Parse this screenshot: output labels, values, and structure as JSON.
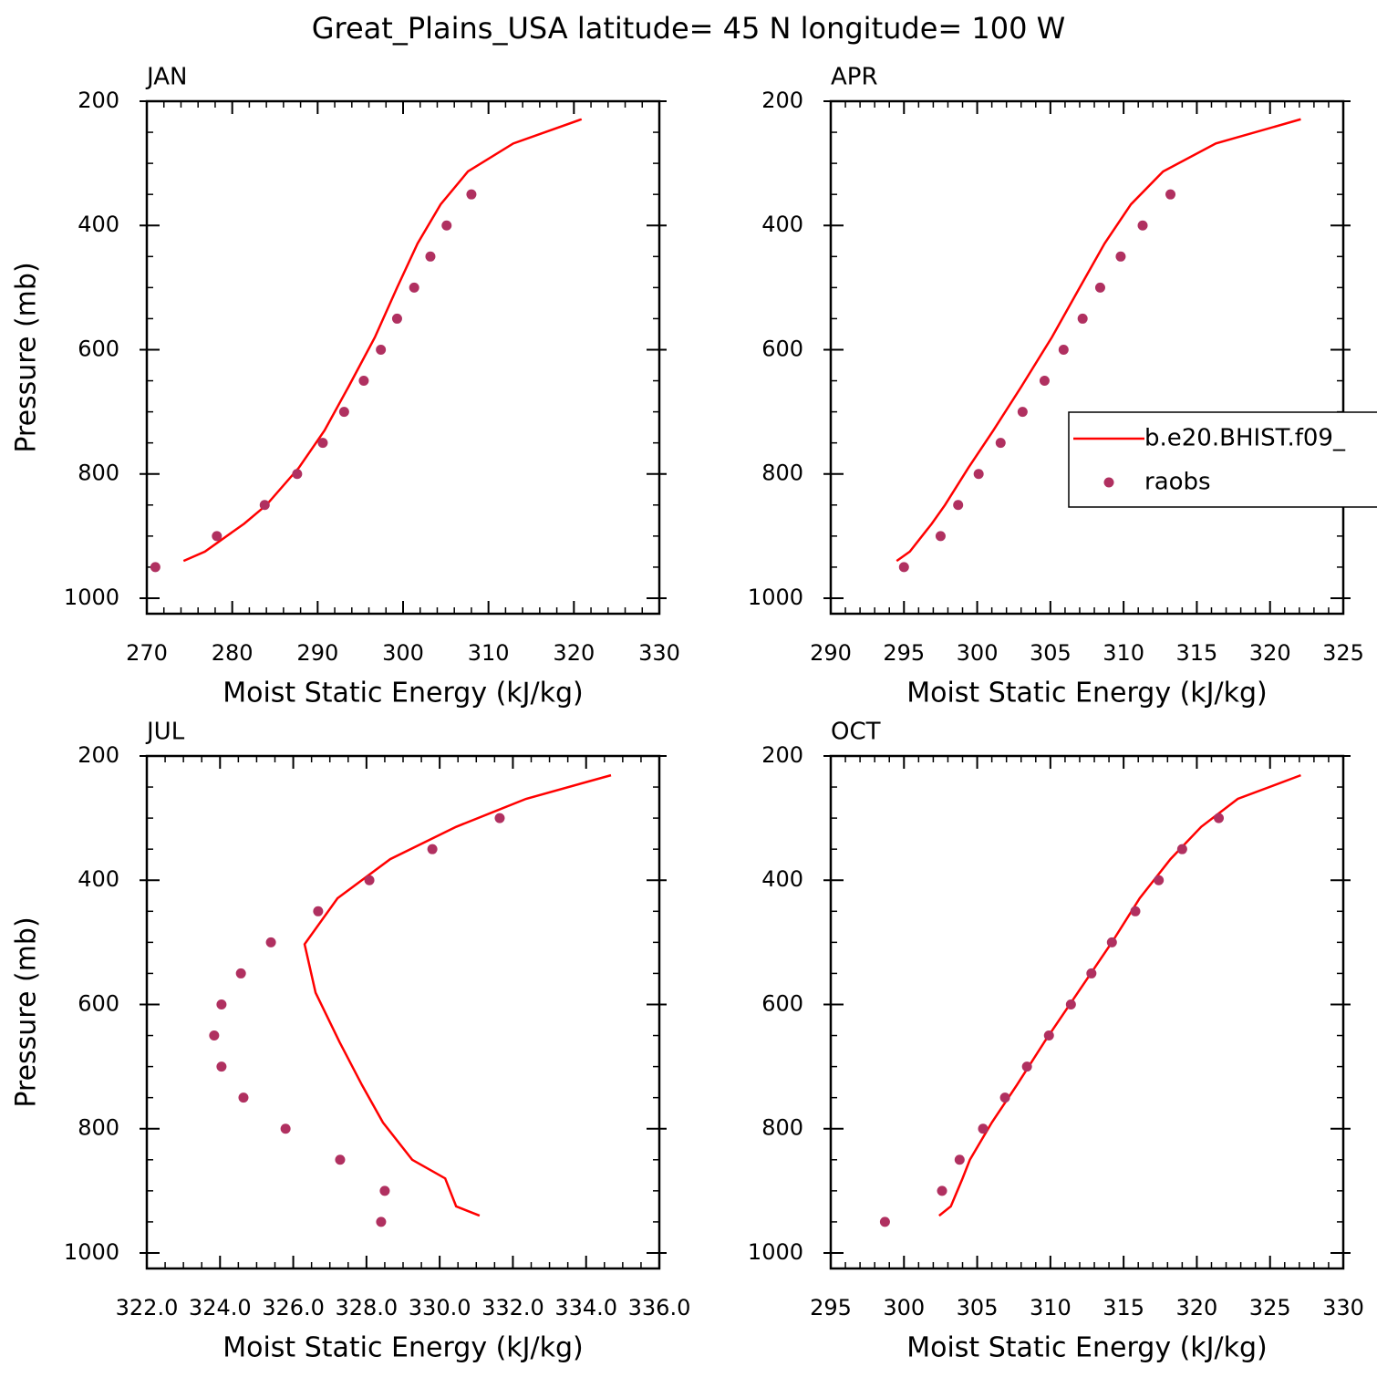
{
  "title": "Great_Plains_USA  latitude= 45 N longitude= 100 W",
  "chart_data": [
    {
      "type": "line",
      "title": "JAN",
      "xlabel": "Moist Static Energy (kJ/kg)",
      "ylabel": "Pressure (mb)",
      "xlim": [
        270,
        330
      ],
      "ylim": [
        1025,
        200
      ],
      "xticks": [
        270,
        280,
        290,
        300,
        310,
        320,
        330
      ],
      "yticks": [
        200,
        400,
        600,
        800,
        1000
      ],
      "xminorticks": [
        272,
        274,
        276,
        278,
        282,
        284,
        286,
        288,
        292,
        294,
        296,
        298,
        302,
        304,
        306,
        308,
        312,
        314,
        316,
        318,
        322,
        324,
        326,
        328
      ],
      "yminorticks": [
        250,
        300,
        350,
        450,
        500,
        550,
        650,
        700,
        750,
        850,
        900,
        950
      ],
      "series": [
        {
          "color": "#ff0000",
          "style": "line",
          "x": [
            320.9,
            312.9,
            307.6,
            304.4,
            301.7,
            299.3,
            296.7,
            293.6,
            290.8,
            287.8,
            284.0,
            281.4,
            276.8,
            274.3
          ],
          "y": [
            229,
            268,
            313,
            366,
            429,
            500,
            580,
            660,
            730,
            790,
            850,
            880,
            925,
            940
          ]
        },
        {
          "color": "#b03060",
          "style": "marker",
          "x": [
            308.0,
            305.1,
            303.2,
            301.3,
            299.3,
            297.4,
            295.4,
            293.1,
            290.6,
            287.6,
            283.8,
            278.2,
            271.0
          ],
          "y": [
            350,
            400,
            450,
            500,
            550,
            600,
            650,
            700,
            750,
            800,
            850,
            900,
            950
          ]
        }
      ]
    },
    {
      "type": "line",
      "title": "APR",
      "xlabel": "Moist Static Energy (kJ/kg)",
      "xlim": [
        290,
        325
      ],
      "ylim": [
        1025,
        200
      ],
      "xticks": [
        290,
        295,
        300,
        305,
        310,
        315,
        320,
        325
      ],
      "yticks": [
        200,
        400,
        600,
        800,
        1000
      ],
      "xminorticks": [
        291,
        292,
        293,
        294,
        296,
        297,
        298,
        299,
        301,
        302,
        303,
        304,
        306,
        307,
        308,
        309,
        311,
        312,
        313,
        314,
        316,
        317,
        318,
        319,
        321,
        322,
        323,
        324
      ],
      "yminorticks": [
        250,
        300,
        350,
        450,
        500,
        550,
        650,
        700,
        750,
        850,
        900,
        950
      ],
      "legend": "right",
      "series": [
        {
          "name": "b.e20.BHIST.f09_",
          "color": "#ff0000",
          "style": "line",
          "x": [
            322.1,
            316.3,
            312.7,
            310.5,
            308.7,
            307.0,
            305.1,
            303.0,
            301.1,
            299.4,
            297.8,
            296.9,
            295.4,
            294.5
          ],
          "y": [
            229,
            268,
            313,
            366,
            429,
            500,
            580,
            660,
            730,
            790,
            850,
            880,
            925,
            940
          ]
        },
        {
          "name": "raobs",
          "color": "#b03060",
          "style": "marker",
          "x": [
            313.2,
            311.3,
            309.8,
            308.4,
            307.2,
            305.9,
            304.6,
            303.1,
            301.6,
            300.1,
            298.7,
            297.5,
            295.0
          ],
          "y": [
            350,
            400,
            450,
            500,
            550,
            600,
            650,
            700,
            750,
            800,
            850,
            900,
            950
          ]
        }
      ]
    },
    {
      "type": "line",
      "title": "JUL",
      "xlabel": "Moist Static Energy (kJ/kg)",
      "ylabel": "Pressure (mb)",
      "xlim": [
        322,
        336
      ],
      "ylim": [
        1025,
        200
      ],
      "xticks": [
        {
          "value": 322,
          "label": "322.0"
        },
        {
          "value": 324,
          "label": "324.0"
        },
        {
          "value": 326,
          "label": "326.0"
        },
        {
          "value": 328,
          "label": "328.0"
        },
        {
          "value": 330,
          "label": "330.0"
        },
        {
          "value": 332,
          "label": "332.0"
        },
        {
          "value": 334,
          "label": "334.0"
        },
        {
          "value": 336,
          "label": "336.0"
        }
      ],
      "yticks": [
        200,
        400,
        600,
        800,
        1000
      ],
      "xminorticks": [
        322.5,
        323,
        323.5,
        324.5,
        325,
        325.5,
        326.5,
        327,
        327.5,
        328.5,
        329,
        329.5,
        330.5,
        331,
        331.5,
        332.5,
        333,
        333.5,
        334.5,
        335,
        335.5
      ],
      "yminorticks": [
        250,
        300,
        350,
        450,
        500,
        550,
        650,
        700,
        750,
        850,
        900,
        950
      ],
      "series": [
        {
          "color": "#ff0000",
          "style": "line",
          "x": [
            334.68,
            332.36,
            330.45,
            328.65,
            327.21,
            326.31,
            326.61,
            327.26,
            327.88,
            328.45,
            329.25,
            330.15,
            330.45,
            331.09
          ],
          "y": [
            231,
            269,
            314,
            366,
            429,
            503,
            581,
            660,
            730,
            790,
            850,
            880,
            925,
            940
          ]
        },
        {
          "color": "#b03060",
          "style": "marker",
          "x": [
            331.64,
            329.8,
            328.08,
            326.68,
            325.39,
            324.57,
            324.04,
            323.84,
            324.04,
            324.64,
            325.79,
            327.28,
            328.5,
            328.4
          ],
          "y": [
            300,
            350,
            400,
            450,
            500,
            550,
            600,
            650,
            700,
            750,
            800,
            850,
            900,
            950
          ]
        }
      ]
    },
    {
      "type": "line",
      "title": "OCT",
      "xlabel": "Moist Static Energy (kJ/kg)",
      "xlim": [
        295,
        330
      ],
      "ylim": [
        1025,
        200
      ],
      "xticks": [
        295,
        300,
        305,
        310,
        315,
        320,
        325,
        330
      ],
      "yticks": [
        200,
        400,
        600,
        800,
        1000
      ],
      "xminorticks": [
        296,
        297,
        298,
        299,
        301,
        302,
        303,
        304,
        306,
        307,
        308,
        309,
        311,
        312,
        313,
        314,
        316,
        317,
        318,
        319,
        321,
        322,
        323,
        324,
        326,
        327,
        328,
        329
      ],
      "yminorticks": [
        250,
        300,
        350,
        450,
        500,
        550,
        650,
        700,
        750,
        850,
        900,
        950
      ],
      "series": [
        {
          "color": "#ff0000",
          "style": "line",
          "x": [
            327.1,
            322.8,
            320.3,
            318.2,
            316.1,
            314.2,
            311.9,
            309.6,
            307.7,
            306.0,
            304.5,
            304.0,
            303.2,
            302.4
          ],
          "y": [
            231,
            269,
            314,
            366,
            429,
            500,
            580,
            660,
            730,
            790,
            850,
            880,
            925,
            940
          ]
        },
        {
          "color": "#b03060",
          "style": "marker",
          "x": [
            321.5,
            319.0,
            317.4,
            315.8,
            314.2,
            312.8,
            311.4,
            309.9,
            308.4,
            306.9,
            305.4,
            303.8,
            302.6,
            298.7
          ],
          "y": [
            300,
            350,
            400,
            450,
            500,
            550,
            600,
            650,
            700,
            750,
            800,
            850,
            900,
            950
          ]
        }
      ]
    }
  ]
}
